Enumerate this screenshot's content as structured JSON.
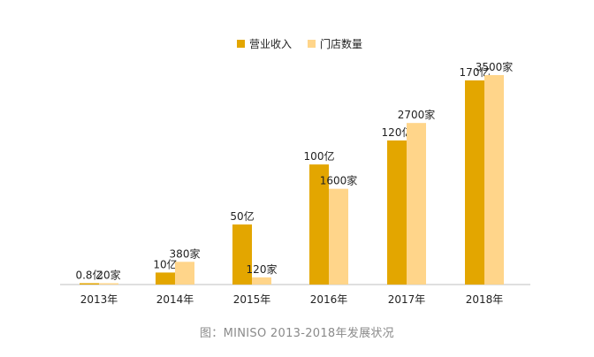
{
  "chart_data": {
    "type": "bar",
    "categories": [
      "2013年",
      "2014年",
      "2015年",
      "2016年",
      "2017年",
      "2018年"
    ],
    "series": [
      {
        "name": "营业收入",
        "values": [
          0.8,
          10,
          50,
          100,
          120,
          170
        ],
        "labels": [
          "0.8亿",
          "10亿",
          "50亿",
          "100亿",
          "120亿",
          "170亿"
        ],
        "color": "#E3A600"
      },
      {
        "name": "门店数量",
        "values": [
          20,
          380,
          120,
          1600,
          2700,
          3500
        ],
        "labels": [
          "20家",
          "380家",
          "120家",
          "1600家",
          "2700家",
          "3500家"
        ],
        "color": "#FFD58A"
      }
    ],
    "legend_position": "top-center",
    "grid": false,
    "axis_values_shown": false
  },
  "caption": "图：MINISO 2013-2018年发展状况"
}
